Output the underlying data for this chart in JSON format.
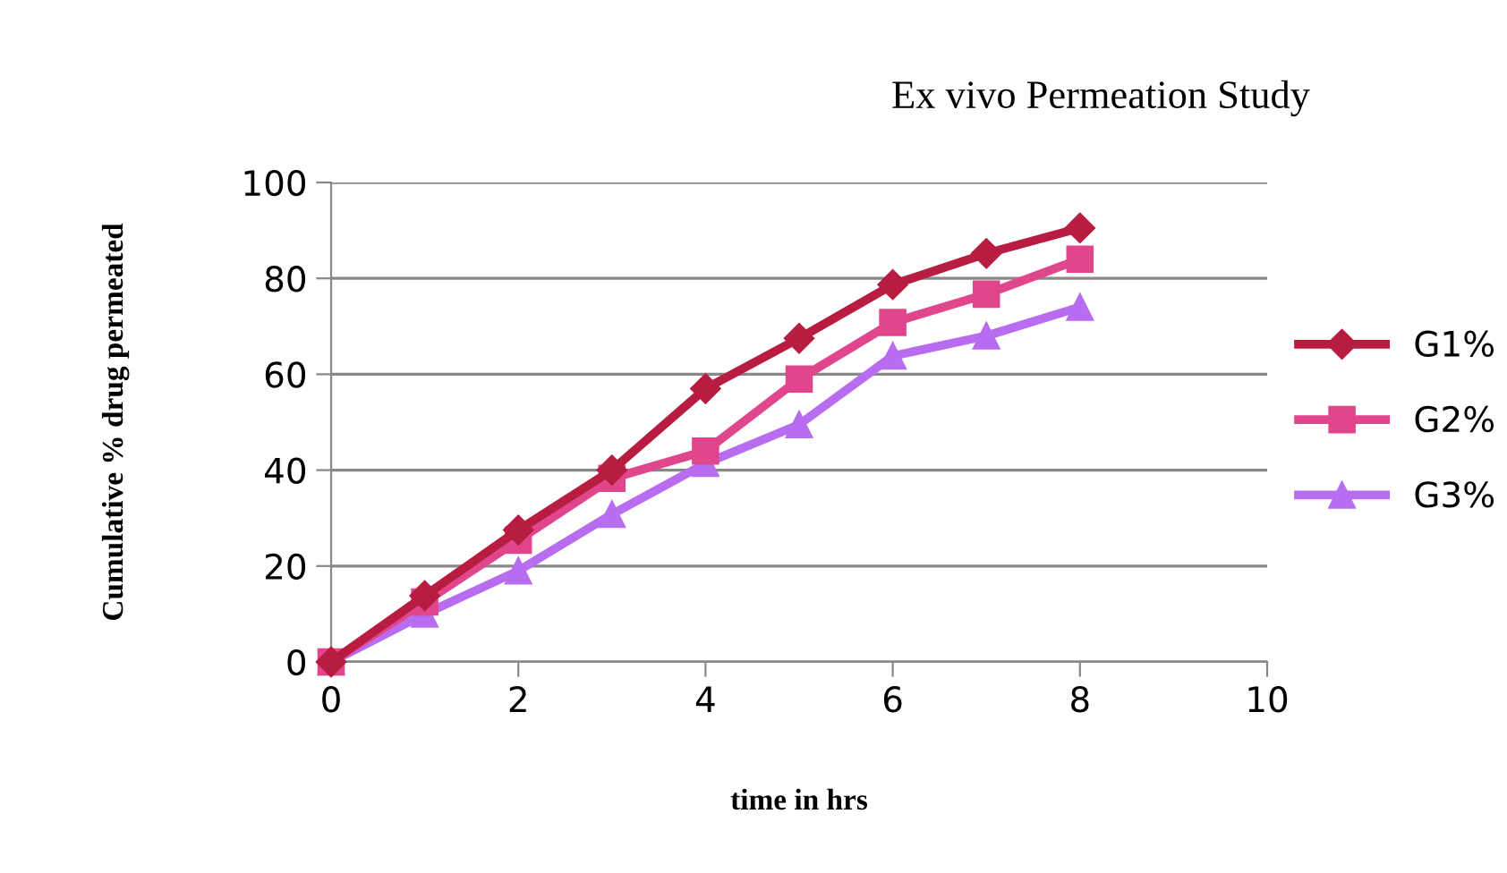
{
  "chart_data": {
    "type": "line",
    "title": "Ex vivo Permeation Study",
    "xlabel": "time in hrs",
    "ylabel": "Cumulative % drug permeated",
    "x": [
      0,
      1,
      2,
      3,
      4,
      5,
      6,
      7,
      8
    ],
    "series": [
      {
        "name": "G1%",
        "color": "#b81c40",
        "marker": "diamond",
        "values": [
          0,
          13.8,
          27.5,
          40,
          57,
          67.5,
          78.7,
          85.2,
          90.5
        ]
      },
      {
        "name": "G2%",
        "color": "#e0468c",
        "marker": "square",
        "values": [
          0,
          12.5,
          25.4,
          38.3,
          44,
          59,
          70.8,
          76.7,
          84
        ]
      },
      {
        "name": "G3%",
        "color": "#b86cf0",
        "marker": "triangle",
        "values": [
          0,
          10,
          19,
          30.8,
          41.4,
          49.5,
          63.8,
          68,
          74
        ]
      }
    ],
    "xlim": [
      0,
      10
    ],
    "xticks": [
      0,
      2,
      4,
      6,
      8,
      10
    ],
    "ylim": [
      0,
      100
    ],
    "yticks": [
      0,
      20,
      40,
      60,
      80,
      100
    ],
    "grid": "y",
    "legend": "right"
  }
}
